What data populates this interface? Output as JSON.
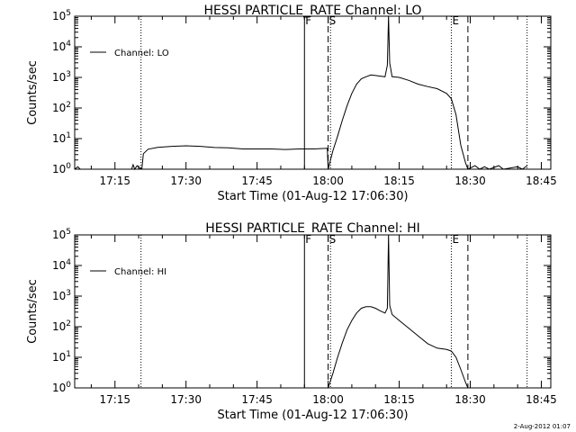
{
  "date_stamp": "2-Aug-2012 01:07",
  "chart_data": [
    {
      "type": "line",
      "title": "HESSI PARTICLE_RATE Channel: LO",
      "xlabel": "Start Time (01-Aug-12 17:06:30)",
      "ylabel": "Counts/sec",
      "x_ticks": [
        "17:15",
        "17:30",
        "17:45",
        "18:00",
        "18:15",
        "18:30",
        "18:45"
      ],
      "y_ticks": [
        "10^0",
        "10^1",
        "10^2",
        "10^3",
        "10^4",
        "10^5"
      ],
      "xlim": [
        "17:06:30",
        "18:47:00"
      ],
      "ylim": [
        1,
        100000
      ],
      "yscale": "log",
      "legend": {
        "label": "Channel: LO",
        "placement": "top-left"
      },
      "markers": [
        {
          "label": "F",
          "time": "17:55:00",
          "style": "solid"
        },
        {
          "label": "",
          "time": "17:20:30",
          "style": "dotted"
        },
        {
          "label": "S",
          "time": "18:00:00",
          "style": "dashed"
        },
        {
          "label": "",
          "time": "18:00:30",
          "style": "dotted"
        },
        {
          "label": "E",
          "time": "18:26:00",
          "style": "dotted"
        },
        {
          "label": "",
          "time": "18:29:30",
          "style": "dashed"
        },
        {
          "label": "",
          "time": "18:42:00",
          "style": "dotted"
        }
      ],
      "series": [
        {
          "name": "Channel: LO",
          "segments": [
            [
              [
                "17:06:30",
                1.0
              ],
              [
                "17:07:10",
                1.2
              ],
              [
                "17:07:40",
                1.0
              ]
            ],
            [
              [
                "17:18:30",
                1.0
              ],
              [
                "17:18:50",
                1.4
              ],
              [
                "17:19:10",
                1.0
              ],
              [
                "17:19:40",
                1.3
              ],
              [
                "17:20:10",
                1.1
              ],
              [
                "17:20:40",
                1.0
              ]
            ],
            [
              [
                "17:20:40",
                1.0
              ],
              [
                "17:21:00",
                3.2
              ],
              [
                "17:22:00",
                4.5
              ],
              [
                "17:24:00",
                5.2
              ],
              [
                "17:27:00",
                5.6
              ],
              [
                "17:30:00",
                5.8
              ],
              [
                "17:33:00",
                5.6
              ],
              [
                "17:36:00",
                5.1
              ],
              [
                "17:39:00",
                5.0
              ],
              [
                "17:42:00",
                4.6
              ],
              [
                "17:45:00",
                4.6
              ],
              [
                "17:48:00",
                4.6
              ],
              [
                "17:51:00",
                4.4
              ],
              [
                "17:54:00",
                4.6
              ],
              [
                "17:55:00",
                4.6
              ]
            ],
            [
              [
                "17:55:00",
                4.6
              ],
              [
                "17:57:00",
                4.6
              ],
              [
                "17:59:50",
                4.8
              ],
              [
                "18:00:00",
                1.0
              ]
            ],
            [
              [
                "18:00:00",
                1.0
              ],
              [
                "18:01:00",
                4.0
              ],
              [
                "18:02:00",
                12
              ],
              [
                "18:03:00",
                40
              ],
              [
                "18:04:00",
                120
              ],
              [
                "18:05:00",
                300
              ],
              [
                "18:06:00",
                600
              ],
              [
                "18:07:00",
                900
              ],
              [
                "18:08:00",
                1050
              ],
              [
                "18:09:00",
                1200
              ],
              [
                "18:10:00",
                1150
              ],
              [
                "18:11:00",
                1100
              ],
              [
                "18:12:00",
                1050
              ],
              [
                "18:12:30",
                2500
              ],
              [
                "18:12:45",
                100000
              ],
              [
                "18:13:00",
                3000
              ],
              [
                "18:13:30",
                1050
              ],
              [
                "18:15:00",
                1000
              ],
              [
                "18:17:00",
                800
              ],
              [
                "18:19:00",
                600
              ],
              [
                "18:21:00",
                500
              ],
              [
                "18:23:00",
                430
              ],
              [
                "18:25:00",
                300
              ],
              [
                "18:26:00",
                200
              ],
              [
                "18:27:00",
                60
              ],
              [
                "18:28:00",
                6
              ],
              [
                "18:29:00",
                1.6
              ],
              [
                "18:29:30",
                1.0
              ]
            ],
            [
              [
                "18:29:30",
                1.0
              ],
              [
                "18:31:00",
                1.3
              ],
              [
                "18:32:00",
                1.0
              ],
              [
                "18:33:00",
                1.2
              ],
              [
                "18:34:00",
                1.0
              ],
              [
                "18:36:00",
                1.3
              ],
              [
                "18:37:00",
                1.0
              ],
              [
                "18:40:00",
                1.2
              ],
              [
                "18:41:00",
                1.0
              ],
              [
                "18:42:00",
                1.3
              ]
            ]
          ]
        }
      ]
    },
    {
      "type": "line",
      "title": "HESSI PARTICLE_RATE Channel: HI",
      "xlabel": "Start Time (01-Aug-12 17:06:30)",
      "ylabel": "Counts/sec",
      "x_ticks": [
        "17:15",
        "17:30",
        "17:45",
        "18:00",
        "18:15",
        "18:30",
        "18:45"
      ],
      "y_ticks": [
        "10^0",
        "10^1",
        "10^2",
        "10^3",
        "10^4",
        "10^5"
      ],
      "xlim": [
        "17:06:30",
        "18:47:00"
      ],
      "ylim": [
        1,
        100000
      ],
      "yscale": "log",
      "legend": {
        "label": "Channel: HI",
        "placement": "top-left"
      },
      "markers": [
        {
          "label": "F",
          "time": "17:55:00",
          "style": "solid"
        },
        {
          "label": "",
          "time": "17:20:30",
          "style": "dotted"
        },
        {
          "label": "S",
          "time": "18:00:00",
          "style": "dashed"
        },
        {
          "label": "",
          "time": "18:00:30",
          "style": "dotted"
        },
        {
          "label": "E",
          "time": "18:26:00",
          "style": "dotted"
        },
        {
          "label": "",
          "time": "18:29:30",
          "style": "dashed"
        },
        {
          "label": "",
          "time": "18:42:00",
          "style": "dotted"
        }
      ],
      "series": [
        {
          "name": "Channel: HI",
          "segments": [
            [
              [
                "18:00:00",
                1.0
              ],
              [
                "18:01:00",
                3.0
              ],
              [
                "18:02:00",
                10
              ],
              [
                "18:03:00",
                30
              ],
              [
                "18:04:00",
                80
              ],
              [
                "18:05:00",
                160
              ],
              [
                "18:06:00",
                280
              ],
              [
                "18:07:00",
                400
              ],
              [
                "18:08:00",
                450
              ],
              [
                "18:09:00",
                450
              ],
              [
                "18:10:00",
                400
              ],
              [
                "18:11:00",
                330
              ],
              [
                "18:12:00",
                280
              ],
              [
                "18:12:30",
                400
              ],
              [
                "18:12:45",
                100000
              ],
              [
                "18:13:00",
                500
              ],
              [
                "18:13:30",
                250
              ],
              [
                "18:15:00",
                160
              ],
              [
                "18:17:00",
                90
              ],
              [
                "18:19:00",
                50
              ],
              [
                "18:21:00",
                28
              ],
              [
                "18:23:00",
                20
              ],
              [
                "18:25:00",
                18
              ],
              [
                "18:26:00",
                16
              ],
              [
                "18:27:00",
                10
              ],
              [
                "18:28:00",
                4
              ],
              [
                "18:29:00",
                1.5
              ],
              [
                "18:29:30",
                1.0
              ]
            ]
          ]
        }
      ]
    }
  ]
}
